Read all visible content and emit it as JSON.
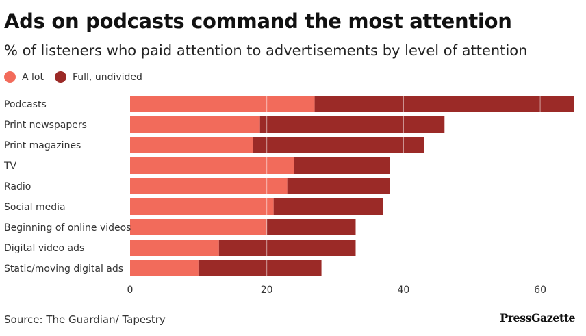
{
  "header": {
    "title": "Ads on podcasts command the most attention",
    "subtitle": "% of listeners who paid attention to advertisements by level of attention"
  },
  "legend": {
    "items": [
      {
        "label": "A lot",
        "color": "#f26b5b"
      },
      {
        "label": "Full, undivided",
        "color": "#9b2a27"
      }
    ]
  },
  "footer": {
    "source": "Source: The Guardian/ Tapestry",
    "brand": "PressGazette"
  },
  "chart_data": {
    "type": "bar",
    "orientation": "horizontal",
    "stacked": true,
    "categories": [
      "Podcasts",
      "Print newspapers",
      "Print magazines",
      "TV",
      "Radio",
      "Social media",
      "Beginning of online videos",
      "Digital video ads",
      "Static/moving digital ads"
    ],
    "series": [
      {
        "name": "A lot",
        "color": "#f26b5b",
        "values": [
          27,
          19,
          18,
          24,
          23,
          21,
          20,
          13,
          10
        ]
      },
      {
        "name": "Full, undivided",
        "color": "#9b2a27",
        "values": [
          38,
          27,
          25,
          14,
          15,
          16,
          13,
          20,
          18
        ]
      }
    ],
    "xlim": [
      0,
      65
    ],
    "xticks": [
      0,
      20,
      40,
      60
    ],
    "grid": true,
    "legend_position": "top-left"
  }
}
